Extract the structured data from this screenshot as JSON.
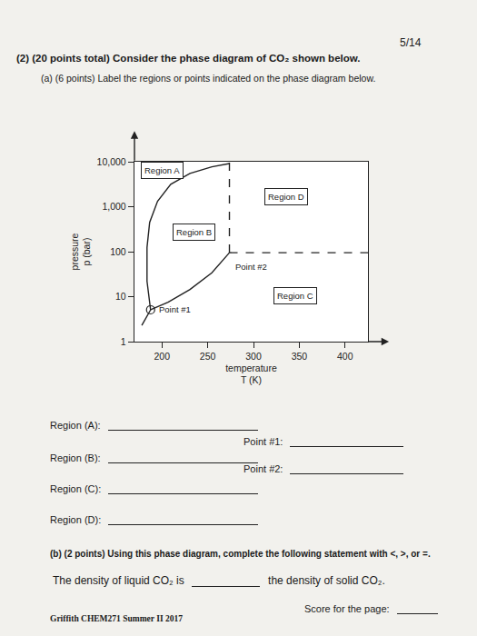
{
  "page_number": "5/14",
  "question": "(2) (20 points total) Consider the phase diagram of CO₂ shown below.",
  "part_a": "(a) (6 points) Label the regions or points indicated on the phase diagram below.",
  "chart_data": {
    "type": "line",
    "xlabel": [
      "temperature",
      "T (K)"
    ],
    "ylabel": [
      "pressure",
      "p (bar)"
    ],
    "log": "y",
    "grid": false,
    "color": "#222222",
    "xlim": [
      170,
      425
    ],
    "ylim": [
      1,
      10000
    ],
    "xticks": [
      200,
      250,
      300,
      350,
      400
    ],
    "yticks": [
      1,
      10,
      100,
      {
        "value": 1000,
        "label": "1,000"
      },
      {
        "value": 10000,
        "label": "10,000"
      }
    ],
    "series": [
      {
        "x": [
          187.6,
          183.7,
          183.7,
          186.6,
          195.2,
          209.6,
          230.6,
          254.5,
          273.7
        ],
        "y": [
          5.1,
          22,
          124,
          450,
          1320,
          3150,
          5500,
          7700,
          9100
        ],
        "line_style": "solid"
      },
      {
        "x": [
          187.6,
          206.7,
          230.6,
          254.5,
          273.7
        ],
        "y": [
          5.1,
          7.5,
          14.4,
          34,
          95
        ],
        "line_style": "solid"
      },
      {
        "x": [
          187.6,
          178
        ],
        "y": [
          5.1,
          2.3
        ],
        "line_style": "solid"
      },
      {
        "x": [
          273.7,
          273.7
        ],
        "y": [
          95,
          10000
        ],
        "line_style": "dashed"
      },
      {
        "x": [
          273.7,
          425
        ],
        "y": [
          95,
          95
        ],
        "line_style": "dashed"
      }
    ],
    "regions": [
      {
        "text": "Region A",
        "x": 200,
        "y": 6500
      },
      {
        "text": "Region B",
        "x": 235.4,
        "y": 270
      },
      {
        "text": "Region D",
        "x": 335.9,
        "y": 1700
      },
      {
        "text": "Region C",
        "x": 345.4,
        "y": 10.7
      }
    ],
    "points": [
      {
        "text": "Point #1",
        "x": 187.6,
        "y": 5.1,
        "marker": "open_circle"
      },
      {
        "text": "Point #2",
        "x": 273.7,
        "y": 95,
        "marker": "none"
      }
    ]
  },
  "answer_blanks": {
    "left": [
      "Region (A):",
      "Region (B):",
      "Region (C):",
      "Region (D):"
    ],
    "right": [
      "Point #1:",
      "Point #2:"
    ]
  },
  "part_b": "(b) (2 points) Using this phase diagram, complete the following statement with <, >, or =.",
  "statement": [
    "The density of liquid CO₂ is",
    "the density of solid CO₂."
  ],
  "score": "Score for the page:",
  "footer": "Griffith CHEM271 Summer II 2017"
}
